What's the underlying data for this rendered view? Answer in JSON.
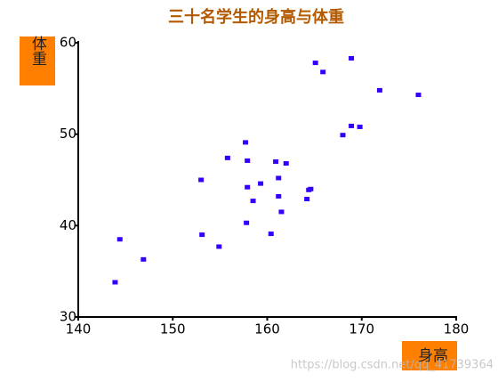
{
  "chart_data": {
    "type": "scatter",
    "title": "三十名学生的身高与体重",
    "x_label": "身高",
    "y_label": "体重",
    "color": "#3300ff",
    "title_color": "#b35900",
    "label_box_color": "#ff7f00",
    "x": [
      143.9,
      144.4,
      146.9,
      153.0,
      153.1,
      154.9,
      155.8,
      157.7,
      157.9,
      157.9,
      157.8,
      158.5,
      159.3,
      160.4,
      160.9,
      161.2,
      161.2,
      161.5,
      162.0,
      164.2,
      164.4,
      164.6,
      165.1,
      165.9,
      168.0,
      168.9,
      168.9,
      169.8,
      171.9,
      176.0
    ],
    "values": [
      33.8,
      38.5,
      36.3,
      45.0,
      39.0,
      37.7,
      47.4,
      49.1,
      47.1,
      44.2,
      40.3,
      42.7,
      44.6,
      39.1,
      47.0,
      45.2,
      43.2,
      41.5,
      46.8,
      42.9,
      43.9,
      44.0,
      57.8,
      56.8,
      49.9,
      58.3,
      50.9,
      50.8,
      54.8,
      54.3
    ],
    "xlim": [
      140,
      180
    ],
    "xticks": [
      140,
      150,
      160,
      170,
      180
    ],
    "ylim": [
      30,
      60
    ],
    "yticks": [
      30,
      40,
      50,
      60
    ]
  },
  "watermark": "https://blog.csdn.net/qq_41739364"
}
